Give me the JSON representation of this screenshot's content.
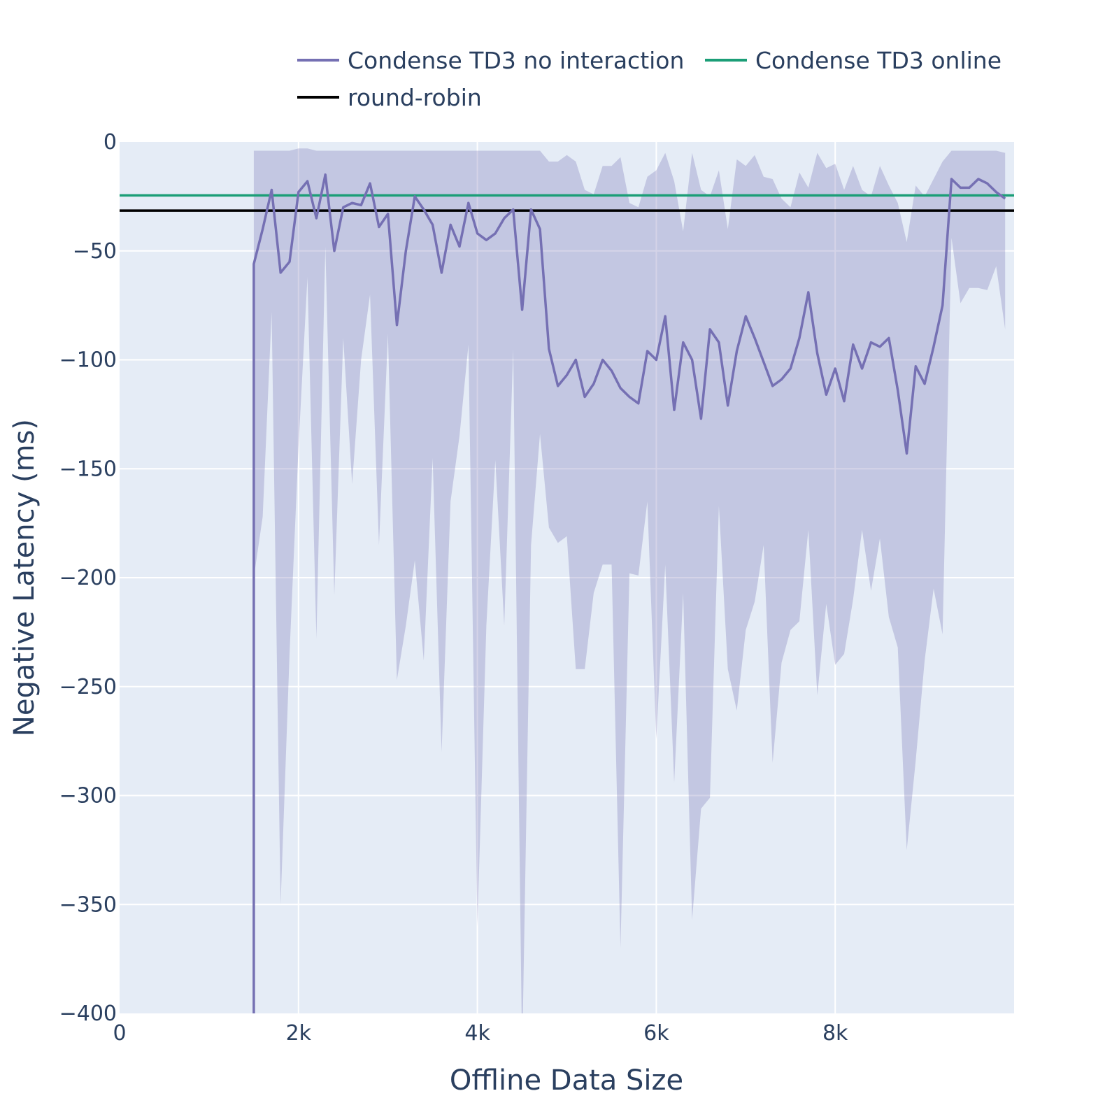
{
  "chart_data": {
    "type": "line",
    "title": "",
    "xlabel": "Offline Data Size",
    "ylabel": "Negative Latency (ms)",
    "xlim": [
      0,
      10000
    ],
    "ylim": [
      -400,
      0
    ],
    "x_ticks": [
      0,
      2000,
      4000,
      6000,
      8000
    ],
    "x_tick_labels": [
      "0",
      "2k",
      "4k",
      "6k",
      "8k"
    ],
    "y_ticks": [
      0,
      -50,
      -100,
      -150,
      -200,
      -250,
      -300,
      -350,
      -400
    ],
    "y_tick_labels": [
      "0",
      "−50",
      "−100",
      "−150",
      "−200",
      "−250",
      "−300",
      "−350",
      "−400"
    ],
    "grid": true,
    "legend_position": "top",
    "series": [
      {
        "name": "Condense TD3 no interaction",
        "color": "#7570b3",
        "band_color": "rgba(117,112,179,0.3)",
        "x": [
          1500,
          1600,
          1700,
          1800,
          1900,
          2000,
          2100,
          2200,
          2300,
          2400,
          2500,
          2600,
          2700,
          2800,
          2900,
          3000,
          3100,
          3200,
          3300,
          3400,
          3500,
          3600,
          3700,
          3800,
          3900,
          4000,
          4100,
          4200,
          4300,
          4400,
          4500,
          4600,
          4700,
          4800,
          4900,
          5000,
          5100,
          5200,
          5300,
          5400,
          5500,
          5600,
          5700,
          5800,
          5900,
          6000,
          6100,
          6200,
          6300,
          6400,
          6500,
          6600,
          6700,
          6800,
          6900,
          7000,
          7100,
          7200,
          7300,
          7400,
          7500,
          7600,
          7700,
          7800,
          7900,
          8000,
          8100,
          8200,
          8300,
          8400,
          8500,
          8600,
          8700,
          8800,
          8900,
          9000,
          9100,
          9200,
          9300,
          9400,
          9500,
          9600,
          9700,
          9800,
          9900
        ],
        "mean": [
          -56,
          -40,
          -22,
          -60,
          -55,
          -23,
          -18,
          -35,
          -15,
          -50,
          -30,
          -28,
          -29,
          -19,
          -39,
          -33,
          -84,
          -50,
          -25,
          -31,
          -38,
          -60,
          -38,
          -48,
          -28,
          -42,
          -45,
          -42,
          -35,
          -31,
          -77,
          -31,
          -40,
          -95,
          -112,
          -107,
          -100,
          -117,
          -111,
          -100,
          -105,
          -113,
          -117,
          -120,
          -96,
          -100,
          -80,
          -123,
          -92,
          -100,
          -127,
          -86,
          -92,
          -121,
          -96,
          -80,
          -90,
          -101,
          -112,
          -109,
          -104,
          -90,
          -69,
          -97,
          -116,
          -104,
          -119,
          -93,
          -104,
          -92,
          -94,
          -90,
          -114,
          -143,
          -103,
          -111,
          -94,
          -75,
          -17,
          -21,
          -21,
          -17,
          -19,
          -23,
          -26
        ],
        "upper": [
          -4,
          -4,
          -4,
          -4,
          -4,
          -3,
          -3,
          -4,
          -4,
          -4,
          -4,
          -4,
          -4,
          -4,
          -4,
          -4,
          -4,
          -4,
          -4,
          -4,
          -4,
          -4,
          -4,
          -4,
          -4,
          -4,
          -4,
          -4,
          -4,
          -4,
          -4,
          -4,
          -4,
          -9,
          -9,
          -6,
          -9,
          -22,
          -24,
          -11,
          -11,
          -7,
          -28,
          -30,
          -16,
          -13,
          -5,
          -18,
          -41,
          -5,
          -22,
          -25,
          -13,
          -40,
          -8,
          -11,
          -6,
          -16,
          -17,
          -26,
          -30,
          -14,
          -21,
          -5,
          -12,
          -10,
          -22,
          -11,
          -22,
          -25,
          -11,
          -20,
          -28,
          -46,
          -20,
          -25,
          -17,
          -9,
          -4,
          -4,
          -4,
          -4,
          -4,
          -4,
          -5
        ],
        "lower": [
          -200,
          -172,
          -78,
          -350,
          -235,
          -140,
          -62,
          -228,
          -48,
          -208,
          -90,
          -157,
          -100,
          -70,
          -185,
          -88,
          -247,
          -222,
          -192,
          -238,
          -145,
          -280,
          -165,
          -135,
          -93,
          -360,
          -222,
          -146,
          -222,
          -95,
          -420,
          -185,
          -134,
          -177,
          -184,
          -181,
          -242,
          -242,
          -207,
          -194,
          -194,
          -370,
          -198,
          -199,
          -165,
          -274,
          -194,
          -294,
          -207,
          -357,
          -306,
          -301,
          -167,
          -242,
          -261,
          -224,
          -211,
          -185,
          -285,
          -239,
          -224,
          -220,
          -178,
          -254,
          -212,
          -240,
          -235,
          -210,
          -178,
          -206,
          -182,
          -218,
          -232,
          -325,
          -284,
          -238,
          -205,
          -226,
          -44,
          -74,
          -67,
          -67,
          -68,
          -57,
          -86
        ]
      },
      {
        "name": "Condense TD3 online",
        "color": "#1b9e77",
        "y": -24.5
      },
      {
        "name": "round-robin",
        "color": "#000000",
        "y": -31.5
      }
    ]
  }
}
